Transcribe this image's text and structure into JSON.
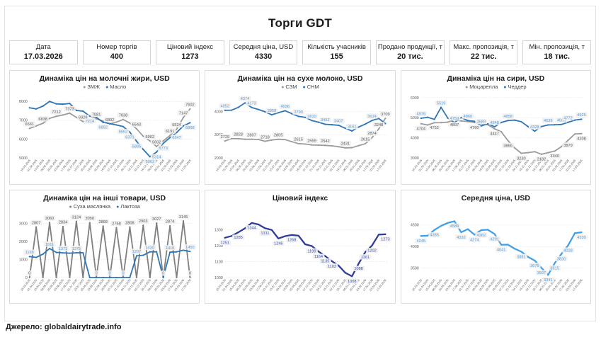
{
  "title": "Торги GDT",
  "source": "Джерело: globaldairytrade.info",
  "kpi_cards": [
    {
      "label": "Дата",
      "value": "17.03.2026"
    },
    {
      "label": "Номер торгів",
      "value": "400"
    },
    {
      "label": "Ціновий індекс",
      "value": "1273"
    },
    {
      "label": "Середня ціна, USD",
      "value": "4330"
    },
    {
      "label": "Кількість учасників",
      "value": "155"
    },
    {
      "label": "Продано продукції, т",
      "value": "20 тис."
    },
    {
      "label": "Макс. пропозиція, т",
      "value": "22 тис."
    },
    {
      "label": "Мін. пропозиція, т",
      "value": "18 тис."
    }
  ],
  "dates": [
    "18.03.2025",
    "01.04.2025",
    "15.04.2025",
    "06.05.2025",
    "20.05.2025",
    "03.06.2025",
    "17.06.2025",
    "01.07.2025",
    "15.07.2025",
    "05.08.2025",
    "19.08.2025",
    "02.09.2025",
    "16.09.2025",
    "07.10.2025",
    "21.10.2025",
    "04.11.2025",
    "18.11.2025",
    "02.12.2025",
    "16.12.2025",
    "06.01.2026",
    "20.01.2026",
    "03.02.2026",
    "17.02.2026",
    "03.03.2026",
    "17.03.2026"
  ],
  "chart_data": [
    {
      "id": "milk-fats",
      "type": "line",
      "title": "Динаміка цін на молочні жири, USD",
      "ymin": 5000,
      "ymax": 8200,
      "yticks": [
        5000,
        6000,
        7000,
        8000
      ],
      "series": [
        {
          "name": "ЗМЖ",
          "color": "#9b9b9b",
          "labelColor": "#595959",
          "labelPos": "above",
          "values": [
            6561,
            6700,
            6838,
            7100,
            7212,
            7280,
            7373,
            7150,
            6928,
            7010,
            7081,
            6950,
            6802,
            6900,
            7038,
            6850,
            6543,
            6150,
            5902,
            5602,
            5900,
            6191,
            6524,
            7147,
            7602
          ],
          "labeled": [
            0,
            2,
            4,
            6,
            8,
            10,
            12,
            14,
            16,
            18,
            19,
            21,
            22,
            23,
            24
          ]
        },
        {
          "name": "Масло",
          "color": "#2e75b6",
          "labelColor": "#5b9bd5",
          "labelPos": "below",
          "values": [
            7660,
            7600,
            7750,
            8000,
            7870,
            7850,
            7890,
            7520,
            7480,
            7214,
            7150,
            6892,
            6820,
            6750,
            6662,
            6371,
            5885,
            5450,
            5062,
            5314,
            5773,
            6080,
            6347,
            6700,
            6868
          ],
          "labeled": [
            9,
            11,
            14,
            15,
            16,
            18,
            19,
            20,
            22,
            24
          ]
        }
      ]
    },
    {
      "id": "milk-powder",
      "type": "line",
      "title": "Динаміка цін на сухе молоко, USD",
      "ymin": 2000,
      "ymax": 4600,
      "yticks": [
        2000,
        3000,
        4000
      ],
      "series": [
        {
          "name": "СЗМ",
          "color": "#9b9b9b",
          "labelColor": "#595959",
          "labelPos": "above",
          "values": [
            2729,
            2830,
            2828,
            2805,
            2807,
            2795,
            2718,
            2770,
            2805,
            2790,
            2700,
            2615,
            2600,
            2559,
            2550,
            2542,
            2520,
            2480,
            2431,
            2440,
            2530,
            2615,
            2874,
            3248,
            3709
          ],
          "labeled": [
            0,
            2,
            4,
            6,
            8,
            11,
            13,
            15,
            18,
            21,
            22,
            23,
            24
          ]
        },
        {
          "name": "СНМ",
          "color": "#2e75b6",
          "labelColor": "#5b9bd5",
          "labelPos": "above",
          "values": [
            4052,
            4060,
            4180,
            4374,
            4173,
            4090,
            3990,
            3859,
            3950,
            4036,
            3910,
            3790,
            3750,
            3610,
            3540,
            3452,
            3430,
            3407,
            3280,
            3161,
            3330,
            3460,
            3614,
            3700,
            3480
          ],
          "labeled": [
            0,
            3,
            4,
            7,
            9,
            11,
            13,
            15,
            17,
            19,
            22
          ]
        }
      ]
    },
    {
      "id": "cheese",
      "type": "line",
      "title": "Динаміка цін на сири, USD",
      "ymin": 3000,
      "ymax": 6000,
      "yticks": [
        3000,
        4000,
        5000,
        6000
      ],
      "series": [
        {
          "name": "Моцарелла",
          "color": "#9b9b9b",
          "labelColor": "#595959",
          "labelPos": "below",
          "values": [
            4704,
            4640,
            4752,
            4755,
            4780,
            4897,
            4840,
            4810,
            4760,
            4700,
            4650,
            4447,
            4300,
            3866,
            3500,
            3230,
            3260,
            3310,
            3182,
            3260,
            3340,
            3560,
            3879,
            4190,
            4208
          ],
          "labeled": [
            0,
            2,
            5,
            8,
            11,
            13,
            15,
            18,
            20,
            22,
            24
          ]
        },
        {
          "name": "Чеддер",
          "color": "#2e75b6",
          "labelColor": "#5b9bd5",
          "labelPos": "above",
          "values": [
            4976,
            5020,
            4920,
            5519,
            4980,
            4759,
            5010,
            4860,
            4820,
            4589,
            4700,
            4548,
            4760,
            4858,
            4880,
            4800,
            4560,
            4328,
            4560,
            4639,
            4650,
            4665,
            4772,
            4880,
            4925
          ],
          "labeled": [
            0,
            3,
            5,
            7,
            9,
            11,
            13,
            17,
            19,
            21,
            22,
            24
          ]
        }
      ]
    },
    {
      "id": "other-goods",
      "type": "line",
      "title": "Динаміка цін на інші товари, USD",
      "ymin": 0,
      "ymax": 3350,
      "yticks": [
        0,
        1000,
        2000,
        3000
      ],
      "series": [
        {
          "name": "Суха маслянка",
          "color": "#7f7f7f",
          "labelColor": "#595959",
          "labelPos": "above",
          "values": [
            0,
            2807,
            0,
            3060,
            0,
            2834,
            0,
            3124,
            0,
            3050,
            0,
            2868,
            0,
            2768,
            0,
            2808,
            0,
            2903,
            0,
            3027,
            0,
            2874,
            0,
            3145,
            0
          ],
          "labeled": [
            0,
            1,
            3,
            5,
            7,
            9,
            11,
            13,
            15,
            17,
            19,
            21,
            23,
            24
          ]
        },
        {
          "name": "Лактоза",
          "color": "#2e75b6",
          "labelColor": "#5b9bd5",
          "labelPos": "above",
          "values": [
            1165,
            1120,
            1300,
            1611,
            1400,
            1371,
            1350,
            1375,
            1375,
            0,
            0,
            0,
            0,
            0,
            0,
            0,
            1207,
            1240,
            1430,
            1430,
            0,
            1410,
            1430,
            1520,
            1450
          ],
          "labeled": [
            0,
            3,
            5,
            7,
            10,
            12,
            14,
            16,
            18,
            20,
            21,
            24
          ]
        }
      ]
    },
    {
      "id": "price-index",
      "type": "line",
      "title": "Ціновий індекс",
      "ymin": 1000,
      "ymax": 1380,
      "yticks": [
        1000,
        1100,
        1200,
        1300
      ],
      "series": [
        {
          "name": null,
          "color": "#2e3d99",
          "labelColor": "#3f51a5",
          "labelPos": "below",
          "width": 2.3,
          "values": [
            1251,
            1262,
            1285,
            1310,
            1344,
            1335,
            1311,
            1300,
            1246,
            1261,
            1268,
            1264,
            1210,
            1199,
            1164,
            1135,
            1103,
            1075,
            1030,
            1008,
            1088,
            1161,
            1202,
            1271,
            1273
          ],
          "labeled": [
            0,
            2,
            4,
            6,
            8,
            10,
            13,
            14,
            15,
            16,
            19,
            20,
            21,
            22,
            24
          ]
        }
      ]
    },
    {
      "id": "avg-price",
      "type": "line",
      "title": "Середня ціна, USD",
      "ymin": 3280,
      "ymax": 4680,
      "yticks": [
        3500,
        4000,
        4500
      ],
      "series": [
        {
          "name": null,
          "color": "#41a0e8",
          "labelColor": "#5b9bd5",
          "labelPos": "below",
          "width": 2.3,
          "values": [
            4245,
            4252,
            4385,
            4480,
            4550,
            4589,
            4332,
            4405,
            4274,
            4382,
            4390,
            4291,
            4041,
            4045,
            3950,
            3881,
            3760,
            3676,
            3507,
            3341,
            3615,
            3830,
            4028,
            4310,
            4330
          ],
          "labeled": [
            0,
            2,
            5,
            6,
            8,
            9,
            11,
            12,
            15,
            17,
            18,
            19,
            20,
            21,
            22,
            24
          ]
        }
      ]
    }
  ]
}
